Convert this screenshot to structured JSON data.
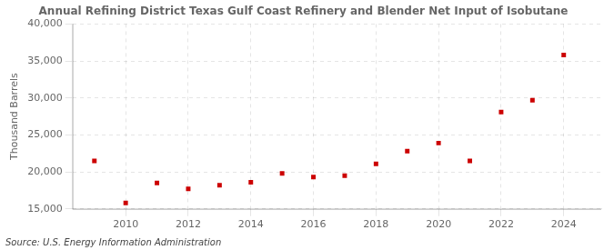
{
  "chart_data": {
    "type": "scatter",
    "title": "Annual Refining District Texas Gulf Coast Refinery and Blender Net Input of Isobutane",
    "ylabel": "Thousand Barrels",
    "source": "Source: U.S. Energy Information Administration",
    "x": [
      2009,
      2010,
      2011,
      2012,
      2013,
      2014,
      2015,
      2016,
      2017,
      2018,
      2019,
      2020,
      2021,
      2022,
      2023,
      2024
    ],
    "values": [
      21500,
      15800,
      18500,
      17700,
      18200,
      18600,
      19800,
      19300,
      19500,
      21100,
      22800,
      23900,
      21500,
      28100,
      29700,
      35800
    ],
    "color": "#cc0000",
    "marker": "square",
    "xlim": [
      2008.3,
      2025.2
    ],
    "xticks": [
      2010,
      2012,
      2014,
      2016,
      2018,
      2020,
      2022,
      2024
    ],
    "ylim": [
      15000,
      40000
    ],
    "yticks": [
      {
        "value": 15000,
        "label": "15,000"
      },
      {
        "value": 20000,
        "label": "20,000"
      },
      {
        "value": 25000,
        "label": "25,000"
      },
      {
        "value": 30000,
        "label": "30,000"
      },
      {
        "value": 35000,
        "label": "35,000"
      },
      {
        "value": 40000,
        "label": "40,000"
      }
    ],
    "grid": true,
    "legend": false
  }
}
